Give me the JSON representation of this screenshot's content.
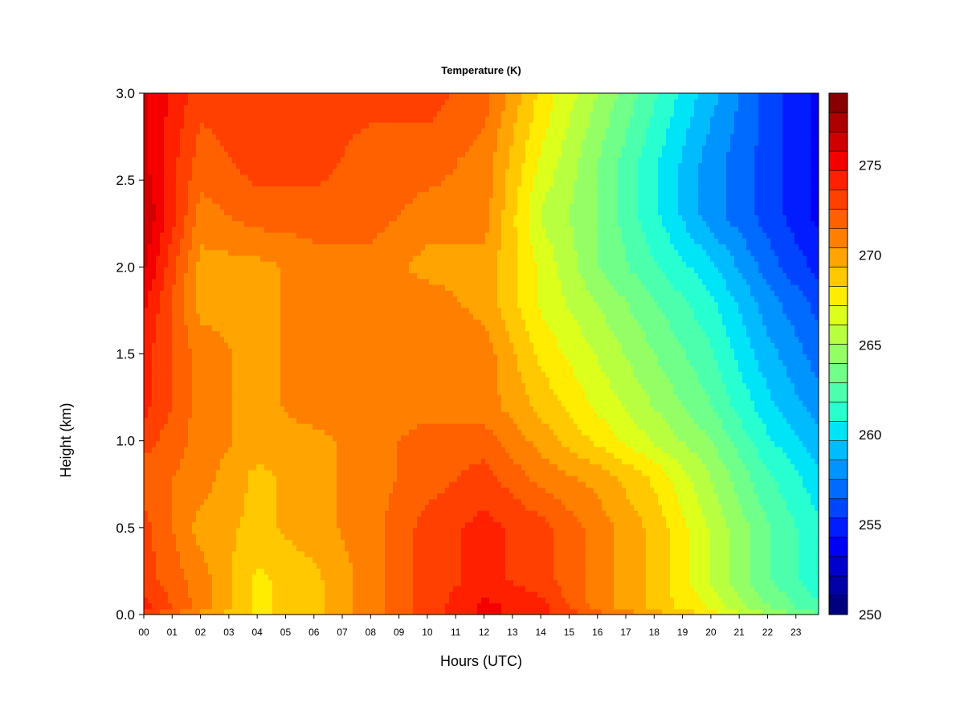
{
  "chart_data": {
    "type": "heatmap",
    "title": "Temperature (K)",
    "xlabel": "Hours (UTC)",
    "ylabel": "Height (km)",
    "x_ticks": [
      "00",
      "01",
      "02",
      "03",
      "04",
      "05",
      "06",
      "07",
      "08",
      "09",
      "10",
      "11",
      "12",
      "13",
      "14",
      "15",
      "16",
      "17",
      "18",
      "19",
      "20",
      "21",
      "22",
      "23"
    ],
    "y_ticks": [
      "0.0",
      "0.5",
      "1.0",
      "1.5",
      "2.0",
      "2.5",
      "3.0"
    ],
    "xlim": [
      0,
      23.8
    ],
    "ylim": [
      0,
      3.0
    ],
    "colorbar": {
      "label_ticks": [
        "250",
        "255",
        "260",
        "265",
        "270",
        "275"
      ],
      "range": [
        250,
        279
      ],
      "levels": [
        250,
        251,
        252,
        253,
        254,
        255,
        256,
        257,
        258,
        259,
        260,
        261,
        262,
        263,
        264,
        265,
        266,
        267,
        268,
        269,
        270,
        271,
        272,
        273,
        274,
        275,
        276,
        277,
        278,
        279
      ],
      "colors": [
        "#00007f",
        "#0000a6",
        "#0000cd",
        "#0000f4",
        "#001cff",
        "#0044ff",
        "#006cff",
        "#0094ff",
        "#00bcff",
        "#00e4f8",
        "#28ffd0",
        "#4cffac",
        "#70ff88",
        "#94ff64",
        "#b8ff40",
        "#dcff1c",
        "#ffec00",
        "#ffc800",
        "#ffa400",
        "#ff8000",
        "#ff6000",
        "#ff4000",
        "#ff2000",
        "#f40000",
        "#d00000",
        "#ac0000",
        "#880000"
      ],
      "colormap": "jet"
    },
    "grid": false,
    "legend": "right-colorbar",
    "hours": [
      0,
      2,
      4,
      6,
      8,
      10,
      12,
      14,
      16,
      18,
      20,
      22,
      23.8
    ],
    "heights_km": [
      0,
      0.05,
      0.2,
      0.5,
      0.8,
      1.0,
      1.2,
      1.5,
      1.8,
      2.0,
      2.3,
      2.6,
      3.0
    ],
    "values_K": [
      [
        273,
        270,
        268,
        269,
        271,
        273,
        275,
        274,
        272,
        270,
        268,
        265,
        263
      ],
      [
        274,
        271,
        268,
        269,
        271,
        273,
        275,
        274,
        271,
        269,
        267,
        264,
        262
      ],
      [
        273,
        271,
        268,
        269,
        271,
        273,
        274,
        273,
        271,
        269,
        266,
        263,
        261
      ],
      [
        273,
        270,
        269,
        270,
        271,
        273,
        274,
        273,
        271,
        269,
        266,
        263,
        261
      ],
      [
        272,
        271,
        269,
        270,
        271,
        272,
        273,
        271,
        270,
        268,
        265,
        262,
        260
      ],
      [
        273,
        271,
        270,
        270,
        271,
        272,
        272,
        270,
        268,
        266,
        264,
        261,
        259
      ],
      [
        274,
        271,
        270,
        271,
        271,
        271,
        271,
        269,
        267,
        265,
        263,
        260,
        258
      ],
      [
        274,
        271,
        270,
        271,
        271,
        271,
        271,
        268,
        266,
        264,
        262,
        259,
        257
      ],
      [
        275,
        270,
        270,
        271,
        271,
        271,
        270,
        267,
        265,
        263,
        261,
        258,
        256
      ],
      [
        276,
        270,
        270,
        271,
        271,
        270,
        270,
        267,
        264,
        262,
        260,
        257,
        255
      ],
      [
        277,
        271,
        272,
        272,
        272,
        271,
        271,
        266,
        264,
        261,
        258,
        256,
        254
      ],
      [
        276,
        272,
        273,
        273,
        272,
        272,
        271,
        267,
        264,
        261,
        258,
        256,
        254
      ],
      [
        276,
        273,
        273,
        273,
        273,
        273,
        272,
        268,
        265,
        262,
        259,
        256,
        254
      ]
    ]
  }
}
